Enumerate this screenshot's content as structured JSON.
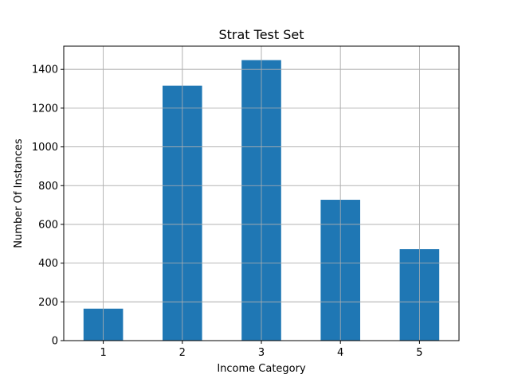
{
  "chart_data": {
    "type": "bar",
    "title": "Strat Test Set",
    "xlabel": "Income Category",
    "ylabel": "Number Of Instances",
    "categories": [
      "1",
      "2",
      "3",
      "4",
      "5"
    ],
    "values": [
      165,
      1316,
      1448,
      727,
      472
    ],
    "ylim": [
      0,
      1520
    ],
    "yticks": [
      0,
      200,
      400,
      600,
      800,
      1000,
      1200,
      1400
    ],
    "grid": true,
    "legend": "none",
    "bar_color": "#1f77b4",
    "grid_color": "#b0b0b0"
  }
}
